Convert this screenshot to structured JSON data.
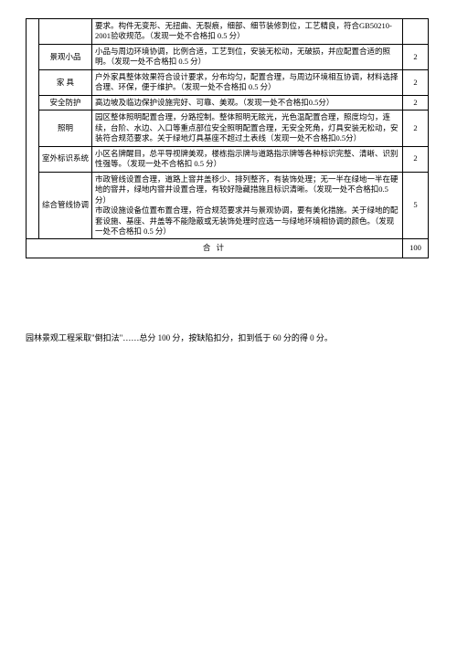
{
  "table": {
    "rows": [
      {
        "label": "",
        "content": "要求。构件无变形、无扭曲、无裂痕，细部、细节装修到位，工艺精良，符合GB50210-2001验收规范。（发现一处不合格扣 0.5 分）",
        "score": ""
      },
      {
        "label": "景观小品",
        "content": "小品与周边环境协调，比例合适，工艺到位，安装无松动，无破损，并应配置合适的照明。（发现一处不合格扣 0.5 分）",
        "score": "2"
      },
      {
        "label": "家    具",
        "content": "户外家具整体效果符合设计要求，分布均匀，配置合理，与周边环境相互协调，材料选择合理、环保，便于维护。（发现一处不合格扣 0.5 分）",
        "score": "2"
      },
      {
        "label": "安全防护",
        "content": "高边坡及临边保护设施完好、可靠、美观。（发现一处不合格扣0.5分）",
        "score": "2"
      },
      {
        "label": "照明",
        "content": "园区整体照明配置合理，分路控制。整体照明无眩光，光色温配置合理，照度均匀，连续，台阶、水边、入口等重点部位安全照明配置合理，无安全死角，灯具安装无松动，安装符合规范要求。关于绿地灯具基座不超过土表线（发现一处不合格扣0.5分）",
        "score": "2"
      },
      {
        "label": "室外标识系统",
        "content": "小区名牌醒目，总平导视牌美观，楼栋指示牌与道路指示牌等各种标识完整、清晰、识别性强等。（发现一处不合格扣 0.5 分）",
        "score": "2"
      },
      {
        "label": "综合管线协调",
        "content": "市政管线设置合理，道路上窨井盖移少、排列整齐，有装饰处理；无一半在绿地一半在硬地的窨井，绿地内窨井设置合理，有较好隐藏措施且标识清晰。（发现一处不合格扣0.5分）\n市政设施设备位置布置合理，符合规范要求并与景观协调，要有美化措施。关于绿地的配套设施、基座、井盖等不能隐蔽或无装饰处理时应选一与绿地环境相协调的颜色。（发现一处不合格扣 0.5 分）",
        "score": "5"
      }
    ],
    "total_label": "合    计",
    "total_score": "100"
  },
  "footer": "园林景观工程采取\"倒扣法\"……总分 100 分，按缺陷扣分，扣到低于 60 分的得 0 分。"
}
